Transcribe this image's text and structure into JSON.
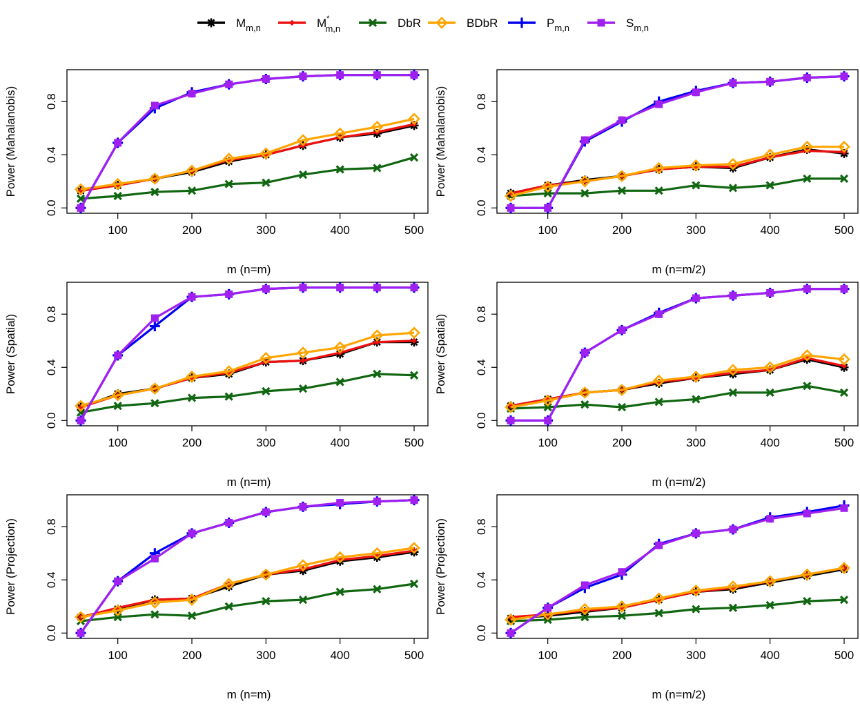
{
  "legend": {
    "items": [
      {
        "main": "M",
        "sub": "m,n",
        "sup": "",
        "color": "#000000",
        "marker": "asterisk"
      },
      {
        "main": "M",
        "sub": "m,n",
        "sup": "*",
        "color": "#ee1111",
        "marker": "diamond-small"
      },
      {
        "main": "DbR",
        "sub": "",
        "sup": "",
        "color": "#116611",
        "marker": "cross"
      },
      {
        "main": "BDbR",
        "sub": "",
        "sup": "",
        "color": "#ffa500",
        "marker": "diamond-open"
      },
      {
        "main": "P",
        "sub": "m,n",
        "sup": "",
        "color": "#0000ee",
        "marker": "plus"
      },
      {
        "main": "S",
        "sub": "m,n",
        "sup": "",
        "color": "#a020f0",
        "marker": "square"
      }
    ]
  },
  "chart_data": [
    {
      "type": "line",
      "ylabel": "Power (Mahalanobis)",
      "xlabel": "m (n=m)",
      "xlim": [
        50,
        500
      ],
      "ylim": [
        0,
        1
      ],
      "xticks": [
        100,
        200,
        300,
        400,
        500
      ],
      "yticks": [
        "0.0",
        "0.4",
        "0.8"
      ],
      "x": [
        50,
        100,
        150,
        200,
        250,
        300,
        350,
        400,
        450,
        500
      ],
      "series": [
        {
          "name": "M_mn",
          "values": [
            0.13,
            0.17,
            0.22,
            0.27,
            0.35,
            0.4,
            0.47,
            0.53,
            0.56,
            0.62
          ]
        },
        {
          "name": "M*_mn",
          "values": [
            0.13,
            0.17,
            0.22,
            0.28,
            0.36,
            0.4,
            0.47,
            0.53,
            0.57,
            0.63
          ]
        },
        {
          "name": "DbR",
          "values": [
            0.07,
            0.09,
            0.12,
            0.13,
            0.18,
            0.19,
            0.25,
            0.29,
            0.3,
            0.38
          ]
        },
        {
          "name": "BDbR",
          "values": [
            0.14,
            0.18,
            0.22,
            0.28,
            0.37,
            0.41,
            0.51,
            0.56,
            0.61,
            0.67
          ]
        },
        {
          "name": "P_mn",
          "values": [
            0.0,
            0.49,
            0.75,
            0.87,
            0.93,
            0.97,
            0.99,
            1.0,
            1.0,
            1.0
          ]
        },
        {
          "name": "S_mn",
          "values": [
            0.0,
            0.49,
            0.77,
            0.86,
            0.93,
            0.97,
            0.99,
            1.0,
            1.0,
            1.0
          ]
        }
      ]
    },
    {
      "type": "line",
      "ylabel": "Power (Mahalanobis)",
      "xlabel": "m (n=m/2)",
      "xlim": [
        50,
        500
      ],
      "ylim": [
        0,
        1
      ],
      "xticks": [
        100,
        200,
        300,
        400,
        500
      ],
      "yticks": [
        "0.0",
        "0.4",
        "0.8"
      ],
      "x": [
        50,
        100,
        150,
        200,
        250,
        300,
        350,
        400,
        450,
        500
      ],
      "series": [
        {
          "name": "M_mn",
          "values": [
            0.11,
            0.17,
            0.21,
            0.24,
            0.29,
            0.31,
            0.3,
            0.38,
            0.44,
            0.41
          ]
        },
        {
          "name": "M*_mn",
          "values": [
            0.11,
            0.17,
            0.2,
            0.24,
            0.29,
            0.31,
            0.31,
            0.38,
            0.43,
            0.42
          ]
        },
        {
          "name": "DbR",
          "values": [
            0.09,
            0.11,
            0.11,
            0.13,
            0.13,
            0.17,
            0.15,
            0.17,
            0.22,
            0.22
          ]
        },
        {
          "name": "BDbR",
          "values": [
            0.09,
            0.16,
            0.2,
            0.24,
            0.3,
            0.32,
            0.33,
            0.4,
            0.46,
            0.46
          ]
        },
        {
          "name": "P_mn",
          "values": [
            0.0,
            0.0,
            0.5,
            0.65,
            0.8,
            0.88,
            0.94,
            0.95,
            0.98,
            0.99
          ]
        },
        {
          "name": "S_mn",
          "values": [
            0.0,
            0.0,
            0.51,
            0.66,
            0.78,
            0.87,
            0.94,
            0.95,
            0.98,
            0.99
          ]
        }
      ]
    },
    {
      "type": "line",
      "ylabel": "Power (Spatial)",
      "xlabel": "m (n=m)",
      "xlim": [
        50,
        500
      ],
      "ylim": [
        0,
        1
      ],
      "xticks": [
        100,
        200,
        300,
        400,
        500
      ],
      "yticks": [
        "0.0",
        "0.4",
        "0.8"
      ],
      "x": [
        50,
        100,
        150,
        200,
        250,
        300,
        350,
        400,
        450,
        500
      ],
      "series": [
        {
          "name": "M_mn",
          "values": [
            0.1,
            0.2,
            0.24,
            0.32,
            0.35,
            0.44,
            0.45,
            0.5,
            0.59,
            0.59
          ]
        },
        {
          "name": "M*_mn",
          "values": [
            0.1,
            0.19,
            0.24,
            0.32,
            0.36,
            0.44,
            0.45,
            0.51,
            0.59,
            0.6
          ]
        },
        {
          "name": "DbR",
          "values": [
            0.06,
            0.11,
            0.13,
            0.17,
            0.18,
            0.22,
            0.24,
            0.29,
            0.35,
            0.34
          ]
        },
        {
          "name": "BDbR",
          "values": [
            0.11,
            0.19,
            0.24,
            0.33,
            0.37,
            0.47,
            0.51,
            0.55,
            0.64,
            0.66
          ]
        },
        {
          "name": "P_mn",
          "values": [
            0.0,
            0.49,
            0.71,
            0.93,
            0.95,
            0.99,
            1.0,
            1.0,
            1.0,
            1.0
          ]
        },
        {
          "name": "S_mn",
          "values": [
            0.0,
            0.49,
            0.77,
            0.93,
            0.95,
            0.99,
            1.0,
            1.0,
            1.0,
            1.0
          ]
        }
      ]
    },
    {
      "type": "line",
      "ylabel": "Power (Spatial)",
      "xlabel": "m (n=m/2)",
      "xlim": [
        50,
        500
      ],
      "ylim": [
        0,
        1
      ],
      "xticks": [
        100,
        200,
        300,
        400,
        500
      ],
      "yticks": [
        "0.0",
        "0.4",
        "0.8"
      ],
      "x": [
        50,
        100,
        150,
        200,
        250,
        300,
        350,
        400,
        450,
        500
      ],
      "series": [
        {
          "name": "M_mn",
          "values": [
            0.11,
            0.16,
            0.21,
            0.23,
            0.28,
            0.32,
            0.35,
            0.38,
            0.46,
            0.4
          ]
        },
        {
          "name": "M*_mn",
          "values": [
            0.11,
            0.16,
            0.21,
            0.23,
            0.29,
            0.32,
            0.36,
            0.38,
            0.47,
            0.41
          ]
        },
        {
          "name": "DbR",
          "values": [
            0.09,
            0.1,
            0.12,
            0.1,
            0.14,
            0.16,
            0.21,
            0.21,
            0.26,
            0.21
          ]
        },
        {
          "name": "BDbR",
          "values": [
            0.1,
            0.15,
            0.21,
            0.23,
            0.3,
            0.33,
            0.38,
            0.4,
            0.49,
            0.46
          ]
        },
        {
          "name": "P_mn",
          "values": [
            0.0,
            0.0,
            0.51,
            0.68,
            0.81,
            0.92,
            0.94,
            0.96,
            0.99,
            0.99
          ]
        },
        {
          "name": "S_mn",
          "values": [
            0.0,
            0.0,
            0.51,
            0.68,
            0.8,
            0.92,
            0.94,
            0.96,
            0.99,
            0.99
          ]
        }
      ]
    },
    {
      "type": "line",
      "ylabel": "Power (Projection)",
      "xlabel": "m (n=m)",
      "xlim": [
        50,
        500
      ],
      "ylim": [
        0,
        1
      ],
      "xticks": [
        100,
        200,
        300,
        400,
        500
      ],
      "yticks": [
        "0.0",
        "0.4",
        "0.8"
      ],
      "x": [
        50,
        100,
        150,
        200,
        250,
        300,
        350,
        400,
        450,
        500
      ],
      "series": [
        {
          "name": "M_mn",
          "values": [
            0.12,
            0.18,
            0.25,
            0.26,
            0.35,
            0.44,
            0.47,
            0.54,
            0.57,
            0.61
          ]
        },
        {
          "name": "M*_mn",
          "values": [
            0.12,
            0.19,
            0.25,
            0.26,
            0.37,
            0.44,
            0.48,
            0.55,
            0.58,
            0.62
          ]
        },
        {
          "name": "DbR",
          "values": [
            0.09,
            0.12,
            0.14,
            0.13,
            0.2,
            0.24,
            0.25,
            0.31,
            0.33,
            0.37
          ]
        },
        {
          "name": "BDbR",
          "values": [
            0.12,
            0.17,
            0.23,
            0.25,
            0.37,
            0.44,
            0.51,
            0.57,
            0.6,
            0.64
          ]
        },
        {
          "name": "P_mn",
          "values": [
            0.0,
            0.39,
            0.6,
            0.75,
            0.83,
            0.91,
            0.95,
            0.97,
            0.99,
            1.0
          ]
        },
        {
          "name": "S_mn",
          "values": [
            0.0,
            0.39,
            0.56,
            0.75,
            0.83,
            0.91,
            0.95,
            0.98,
            0.99,
            1.0
          ]
        }
      ]
    },
    {
      "type": "line",
      "ylabel": "Power (Projection)",
      "xlabel": "m (n=m/2)",
      "xlim": [
        50,
        500
      ],
      "ylim": [
        0,
        1
      ],
      "xticks": [
        100,
        200,
        300,
        400,
        500
      ],
      "yticks": [
        "0.0",
        "0.4",
        "0.8"
      ],
      "x": [
        50,
        100,
        150,
        200,
        250,
        300,
        350,
        400,
        450,
        500
      ],
      "series": [
        {
          "name": "M_mn",
          "values": [
            0.11,
            0.13,
            0.16,
            0.19,
            0.25,
            0.31,
            0.33,
            0.38,
            0.43,
            0.48
          ]
        },
        {
          "name": "M*_mn",
          "values": [
            0.12,
            0.14,
            0.17,
            0.19,
            0.25,
            0.31,
            0.34,
            0.39,
            0.44,
            0.49
          ]
        },
        {
          "name": "DbR",
          "values": [
            0.09,
            0.1,
            0.12,
            0.13,
            0.15,
            0.18,
            0.19,
            0.21,
            0.24,
            0.25
          ]
        },
        {
          "name": "BDbR",
          "values": [
            0.1,
            0.14,
            0.18,
            0.2,
            0.26,
            0.32,
            0.35,
            0.39,
            0.44,
            0.49
          ]
        },
        {
          "name": "P_mn",
          "values": [
            0.0,
            0.19,
            0.34,
            0.44,
            0.67,
            0.75,
            0.78,
            0.87,
            0.91,
            0.96
          ]
        },
        {
          "name": "S_mn",
          "values": [
            0.0,
            0.19,
            0.36,
            0.46,
            0.66,
            0.75,
            0.78,
            0.86,
            0.9,
            0.94
          ]
        }
      ]
    }
  ]
}
